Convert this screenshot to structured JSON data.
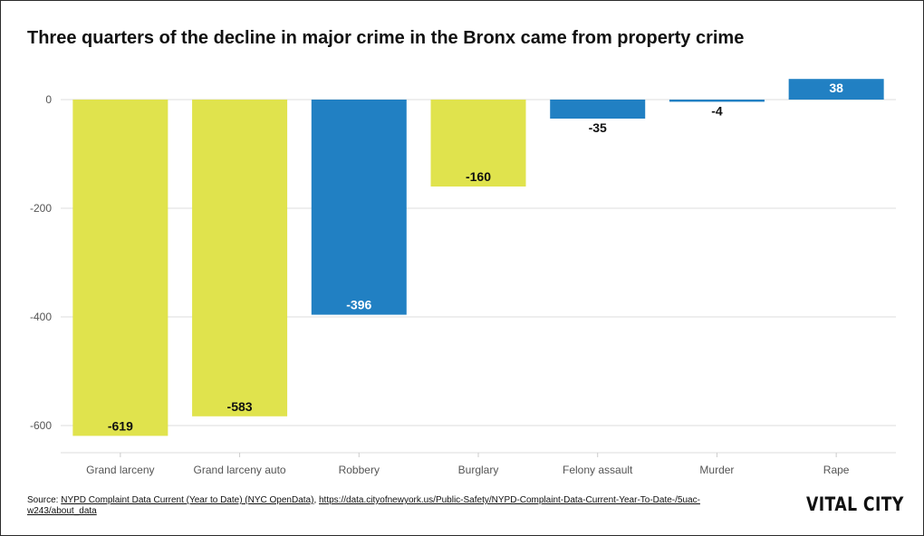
{
  "title": "Three quarters of the decline in major crime in the Bronx came from property crime",
  "source": {
    "prefix": "Source: ",
    "link1_text": "NYPD Complaint Data Current (Year to Date) (NYC OpenData)",
    "separator": ", ",
    "link2_text": "https://data.cityofnewyork.us/Public-Safety/NYPD-Complaint-Data-Current-Year-To-Date-/5uac-w243/about_data"
  },
  "logo": "VITAL CITY",
  "colors": {
    "property": "#e0e34d",
    "violent": "#2180c3",
    "grid": "#dddddd",
    "axis_text": "#555555"
  },
  "chart_data": {
    "type": "bar",
    "title": "Three quarters of the decline in major crime in the Bronx came from property crime",
    "categories": [
      "Grand larceny",
      "Grand larceny auto",
      "Robbery",
      "Burglary",
      "Felony assault",
      "Murder",
      "Rape"
    ],
    "values": [
      -619,
      -583,
      -396,
      -160,
      -35,
      -4,
      38
    ],
    "data_labels": [
      "-619",
      "-583",
      "-396",
      "-160",
      "-35",
      "-4",
      "38"
    ],
    "bar_colors": [
      "#e0e34d",
      "#e0e34d",
      "#2180c3",
      "#e0e34d",
      "#2180c3",
      "#2180c3",
      "#2180c3"
    ],
    "yticks": [
      0,
      -200,
      -400,
      -600
    ],
    "ytick_labels": [
      "0",
      "-200",
      "-400",
      "-600"
    ],
    "ylim": [
      -650,
      45
    ],
    "xlabel": "",
    "ylabel": "",
    "grid": true,
    "legend": "none"
  }
}
